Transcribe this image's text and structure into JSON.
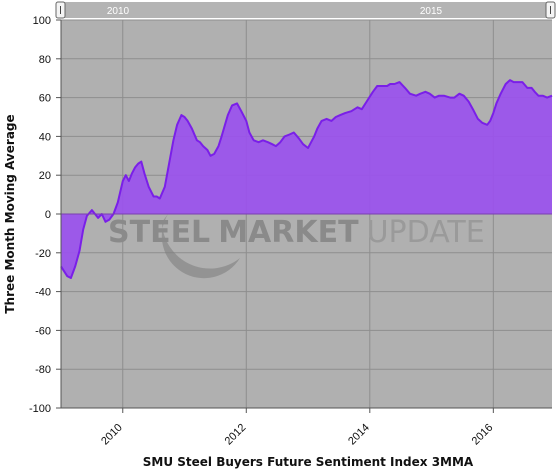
{
  "chart_data": {
    "type": "area",
    "title": "",
    "xlabel": "SMU Steel Buyers Future Sentiment Index 3MMA",
    "ylabel": "Three Month Moving Average",
    "ylim": [
      -100,
      100
    ],
    "yticks": [
      100,
      80,
      60,
      40,
      20,
      0,
      -20,
      -40,
      -60,
      -80,
      -100
    ],
    "xlim": [
      2009.0,
      2016.95
    ],
    "xticks": [
      2010,
      2012,
      2014,
      2016
    ],
    "x_tick_labels": [
      "2010",
      "2012",
      "2014",
      "2016"
    ],
    "navigator_labels": [
      "2010",
      "2015"
    ],
    "grid": true,
    "legend": "none",
    "watermark": {
      "bold": "STEEL",
      "mid": "MARKET",
      "light": "UPDATE"
    },
    "colors": {
      "fill": "#9a50f0",
      "line": "#7a1fe8",
      "plot_bg": "#b0b0b0",
      "navigator": "#b4b4b4",
      "zero_line": "#7a3fb0"
    },
    "series": [
      {
        "x": [
          2009.0,
          2009.1,
          2009.16,
          2009.23,
          2009.3,
          2009.36,
          2009.42,
          2009.5,
          2009.6,
          2009.66,
          2009.72,
          2009.78,
          2009.85,
          2009.92,
          2010.0,
          2010.05,
          2010.1,
          2010.15,
          2010.2,
          2010.25,
          2010.3,
          2010.35,
          2010.42,
          2010.5,
          2010.55,
          2010.6,
          2010.68,
          2010.75,
          2010.82,
          2010.88,
          2010.95,
          2011.0,
          2011.05,
          2011.12,
          2011.2,
          2011.25,
          2011.3,
          2011.37,
          2011.42,
          2011.48,
          2011.55,
          2011.6,
          2011.7,
          2011.77,
          2011.85,
          2011.92,
          2012.0,
          2012.05,
          2012.12,
          2012.2,
          2012.27,
          2012.35,
          2012.42,
          2012.48,
          2012.55,
          2012.62,
          2012.7,
          2012.77,
          2012.85,
          2012.92,
          2013.0,
          2013.05,
          2013.1,
          2013.15,
          2013.22,
          2013.3,
          2013.38,
          2013.45,
          2013.52,
          2013.6,
          2013.7,
          2013.8,
          2013.87,
          2013.95,
          2014.05,
          2014.12,
          2014.2,
          2014.28,
          2014.33,
          2014.4,
          2014.48,
          2014.57,
          2014.65,
          2014.75,
          2014.82,
          2014.9,
          2014.97,
          2015.05,
          2015.12,
          2015.2,
          2015.3,
          2015.37,
          2015.45,
          2015.52,
          2015.6,
          2015.67,
          2015.75,
          2015.82,
          2015.9,
          2015.95,
          2016.0,
          2016.05,
          2016.12,
          2016.2,
          2016.27,
          2016.33,
          2016.4,
          2016.47,
          2016.55,
          2016.62,
          2016.67,
          2016.73,
          2016.8,
          2016.87,
          2016.95
        ],
        "values": [
          -27,
          -32,
          -33,
          -27,
          -19,
          -8,
          -1,
          2,
          -2,
          0,
          -4,
          -3,
          0,
          6,
          17,
          20,
          17,
          21,
          24,
          26,
          27,
          21,
          14,
          9,
          9,
          8,
          14,
          26,
          38,
          46,
          51,
          50,
          48,
          44,
          38,
          37,
          35,
          33,
          30,
          31,
          35,
          40,
          51,
          56,
          57,
          53,
          48,
          42,
          38,
          37,
          38,
          37,
          36,
          35,
          37,
          40,
          41,
          42,
          39,
          36,
          34,
          37,
          40,
          44,
          48,
          49,
          48,
          50,
          51,
          52,
          53,
          55,
          54,
          58,
          63,
          66,
          66,
          66,
          67,
          67,
          68,
          65,
          62,
          61,
          62,
          63,
          62,
          60,
          61,
          61,
          60,
          60,
          62,
          61,
          58,
          54,
          49,
          47,
          46,
          48,
          52,
          57,
          62,
          67,
          69,
          68,
          68,
          68,
          65,
          65,
          63,
          61,
          61,
          60,
          61
        ]
      }
    ]
  }
}
